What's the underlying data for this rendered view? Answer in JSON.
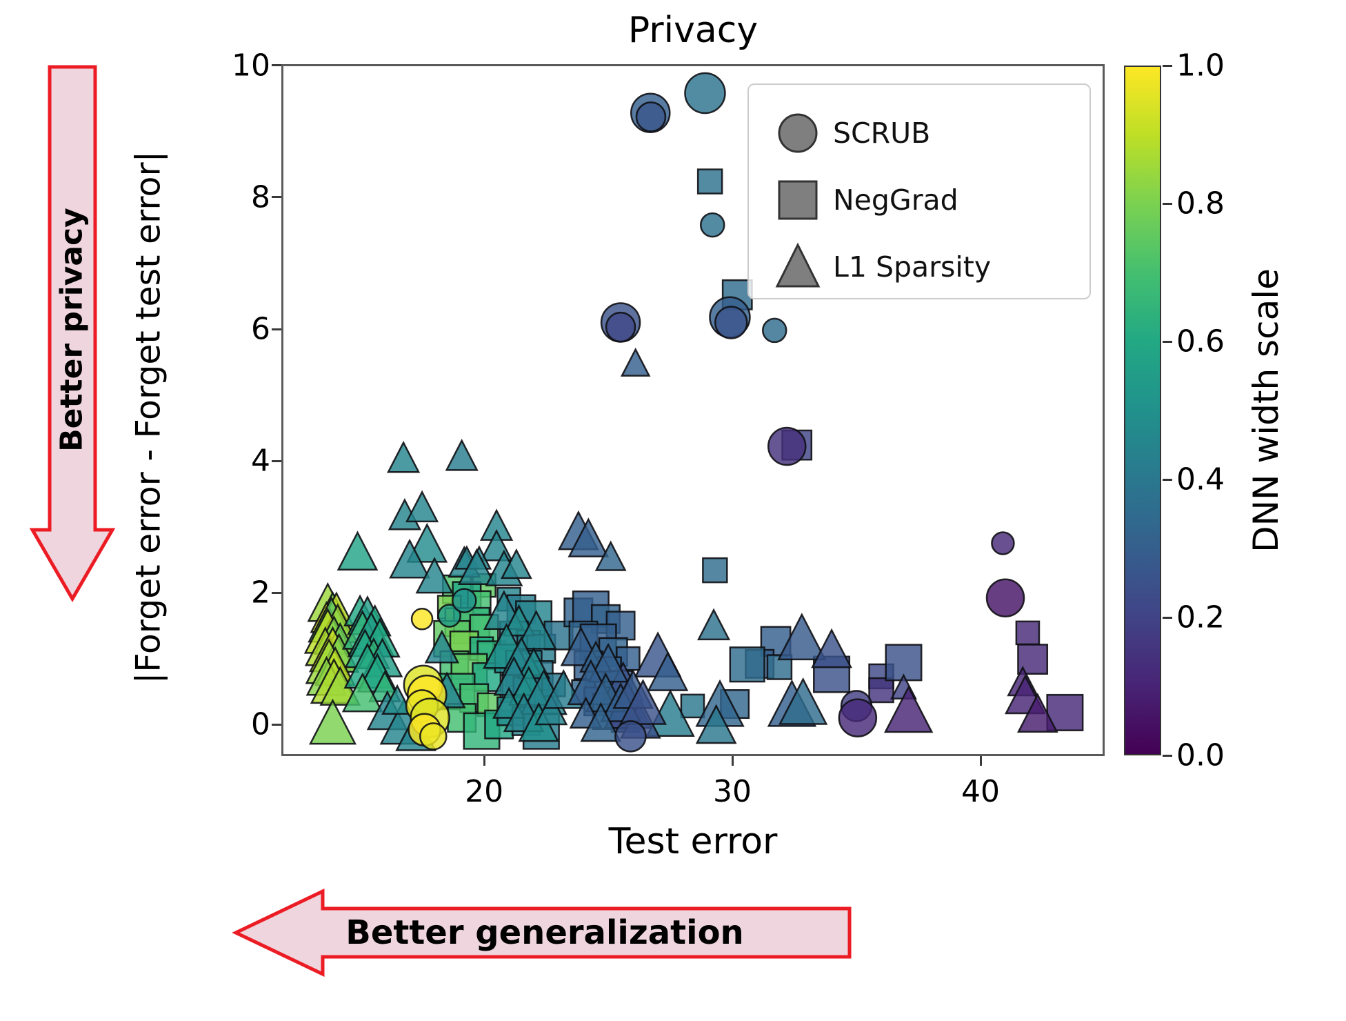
{
  "title": "Privacy",
  "axes": {
    "xlabel": "Test error",
    "ylabel": "|Forget error - Forget test error|",
    "x_ticks": [
      20,
      30,
      40
    ],
    "y_ticks": [
      0,
      2,
      4,
      6,
      8,
      10
    ],
    "xlim": [
      11.83,
      45.0
    ],
    "ylim": [
      -0.48,
      10.02
    ]
  },
  "legend": {
    "items": [
      {
        "marker": "circle",
        "label": "SCRUB"
      },
      {
        "marker": "square",
        "label": "NegGrad"
      },
      {
        "marker": "triangle",
        "label": "L1 Sparsity"
      }
    ],
    "swatch_color": "#7f7f7f",
    "swatch_edge": "#333333"
  },
  "colorbar": {
    "label": "DNN width scale",
    "ticks": [
      1.0,
      0.8,
      0.6,
      0.4,
      0.2,
      0.0
    ],
    "cmap": "viridis",
    "range": [
      0.0,
      1.0
    ]
  },
  "annotations": {
    "left_arrow_text": "Better privacy",
    "bottom_arrow_text": "Better generalization",
    "arrow_fill": "#efd5dd",
    "arrow_stroke": "#ec1c24"
  },
  "chart_data": {
    "type": "scatter",
    "title": "Privacy",
    "xlabel": "Test error",
    "ylabel": "|Forget error - Forget test error|",
    "xlim": [
      11.83,
      45.0
    ],
    "ylim": [
      -0.48,
      10.02
    ],
    "grid": false,
    "color_encoding": "DNN width scale (0 to 1, viridis colormap)",
    "point_format": "[x, y, dnn_width_scale, marker_px_size]",
    "series": [
      {
        "name": "NegGrad",
        "marker": "square",
        "points": [
          [
            29.1,
            8.24,
            0.37,
            38
          ],
          [
            30.2,
            6.52,
            0.35,
            46
          ],
          [
            32.6,
            4.24,
            0.2,
            46
          ],
          [
            29.3,
            2.34,
            0.35,
            38
          ],
          [
            31.75,
            1.26,
            0.3,
            46
          ],
          [
            31.1,
            0.92,
            0.3,
            44
          ],
          [
            31.9,
            0.87,
            0.35,
            38
          ],
          [
            34.0,
            0.76,
            0.25,
            56
          ],
          [
            36.0,
            0.73,
            0.22,
            38
          ],
          [
            36.0,
            0.52,
            0.15,
            38
          ],
          [
            36.9,
            0.94,
            0.25,
            56
          ],
          [
            30.6,
            0.91,
            0.35,
            54
          ],
          [
            28.4,
            0.28,
            0.4,
            36
          ],
          [
            30.1,
            0.31,
            0.33,
            44
          ],
          [
            41.9,
            1.39,
            0.12,
            36
          ],
          [
            42.1,
            0.99,
            0.12,
            46
          ],
          [
            43.4,
            0.18,
            0.12,
            56
          ],
          [
            20.0,
            2.11,
            0.75,
            36
          ],
          [
            18.9,
            2.05,
            0.72,
            44
          ],
          [
            19.3,
            1.95,
            0.6,
            44
          ],
          [
            19.8,
            1.85,
            0.7,
            36
          ],
          [
            18.6,
            1.78,
            0.8,
            36
          ],
          [
            19.0,
            1.55,
            0.85,
            44
          ],
          [
            19.5,
            1.5,
            0.65,
            56
          ],
          [
            20.0,
            1.45,
            0.7,
            44
          ],
          [
            18.7,
            1.3,
            0.75,
            56
          ],
          [
            19.2,
            1.2,
            0.8,
            44
          ],
          [
            19.9,
            1.15,
            0.6,
            36
          ],
          [
            20.3,
            1.05,
            0.65,
            44
          ],
          [
            18.8,
            0.9,
            0.7,
            44
          ],
          [
            19.4,
            0.8,
            0.75,
            56
          ],
          [
            20.1,
            0.72,
            0.6,
            44
          ],
          [
            18.9,
            0.5,
            0.65,
            56
          ],
          [
            19.6,
            0.4,
            0.7,
            44
          ],
          [
            20.2,
            0.3,
            0.75,
            36
          ],
          [
            19.1,
            0.1,
            0.7,
            44
          ],
          [
            19.9,
            -0.1,
            0.65,
            56
          ],
          [
            20.6,
            0.0,
            0.6,
            44
          ],
          [
            21.0,
            1.9,
            0.45,
            36
          ],
          [
            21.5,
            1.75,
            0.42,
            44
          ],
          [
            22.0,
            1.6,
            0.45,
            56
          ],
          [
            21.2,
            1.35,
            0.4,
            44
          ],
          [
            21.8,
            1.25,
            0.45,
            36
          ],
          [
            22.3,
            1.15,
            0.42,
            44
          ],
          [
            21.0,
            1.0,
            0.48,
            44
          ],
          [
            21.6,
            0.85,
            0.45,
            56
          ],
          [
            22.2,
            0.75,
            0.4,
            44
          ],
          [
            21.3,
            0.55,
            0.45,
            44
          ],
          [
            21.9,
            0.45,
            0.42,
            56
          ],
          [
            22.5,
            0.35,
            0.45,
            36
          ],
          [
            21.1,
            0.2,
            0.48,
            44
          ],
          [
            21.7,
            0.05,
            0.45,
            44
          ],
          [
            22.3,
            -0.1,
            0.42,
            56
          ],
          [
            22.8,
            0.6,
            0.4,
            36
          ],
          [
            23.0,
            1.35,
            0.38,
            44
          ],
          [
            23.8,
            1.7,
            0.32,
            44
          ],
          [
            24.3,
            1.75,
            0.3,
            56
          ],
          [
            24.9,
            1.6,
            0.32,
            44
          ],
          [
            25.5,
            1.5,
            0.3,
            44
          ],
          [
            24.0,
            1.35,
            0.33,
            44
          ],
          [
            24.6,
            1.25,
            0.3,
            56
          ],
          [
            25.2,
            1.1,
            0.32,
            44
          ],
          [
            25.8,
            1.0,
            0.3,
            36
          ],
          [
            24.2,
            0.9,
            0.3,
            44
          ],
          [
            24.8,
            0.75,
            0.32,
            56
          ],
          [
            25.4,
            0.6,
            0.3,
            44
          ],
          [
            24.0,
            0.5,
            0.33,
            36
          ],
          [
            24.6,
            0.35,
            0.3,
            44
          ],
          [
            25.1,
            0.2,
            0.32,
            56
          ],
          [
            25.7,
            0.1,
            0.3,
            44
          ]
        ]
      },
      {
        "name": "L1 Sparsity",
        "marker": "triangle",
        "points": [
          [
            26.1,
            5.47,
            0.3,
            34
          ],
          [
            32.8,
            1.29,
            0.28,
            58
          ],
          [
            34.0,
            1.12,
            0.25,
            48
          ],
          [
            32.4,
            0.28,
            0.3,
            58
          ],
          [
            32.85,
            0.31,
            0.35,
            58
          ],
          [
            36.9,
            0.55,
            0.2,
            30
          ],
          [
            37.1,
            0.19,
            0.1,
            58
          ],
          [
            41.7,
            0.63,
            0.1,
            36
          ],
          [
            41.8,
            0.42,
            0.1,
            48
          ],
          [
            42.3,
            0.14,
            0.08,
            48
          ],
          [
            29.25,
            1.49,
            0.37,
            38
          ],
          [
            27.0,
            1.02,
            0.27,
            56
          ],
          [
            27.4,
            0.77,
            0.3,
            48
          ],
          [
            27.5,
            0.13,
            0.42,
            58
          ],
          [
            29.5,
            0.28,
            0.33,
            58
          ],
          [
            29.35,
            -0.03,
            0.4,
            48
          ],
          [
            25.6,
            0.62,
            0.25,
            48
          ],
          [
            25.8,
            0.25,
            0.22,
            58
          ],
          [
            26.3,
            0.05,
            0.25,
            48
          ],
          [
            23.8,
            2.91,
            0.3,
            48
          ],
          [
            24.2,
            2.8,
            0.3,
            48
          ],
          [
            25.1,
            2.53,
            0.33,
            36
          ],
          [
            16.75,
            4.03,
            0.45,
            38
          ],
          [
            19.1,
            4.06,
            0.42,
            38
          ],
          [
            16.8,
            3.16,
            0.45,
            38
          ],
          [
            17.5,
            3.28,
            0.45,
            38
          ],
          [
            14.9,
            2.6,
            0.58,
            48
          ],
          [
            17.7,
            2.72,
            0.48,
            48
          ],
          [
            17.0,
            2.48,
            0.45,
            48
          ],
          [
            18.0,
            2.23,
            0.45,
            44
          ],
          [
            19.2,
            2.44,
            0.45,
            38
          ],
          [
            20.5,
            3.0,
            0.45,
            38
          ],
          [
            20.5,
            2.69,
            0.45,
            38
          ],
          [
            19.3,
            2.51,
            0.45,
            28
          ],
          [
            19.8,
            2.51,
            0.45,
            28
          ],
          [
            19.7,
            2.36,
            0.45,
            44
          ],
          [
            20.8,
            2.34,
            0.45,
            44
          ],
          [
            21.3,
            2.41,
            0.45,
            36
          ],
          [
            13.7,
            1.82,
            0.85,
            48
          ],
          [
            13.9,
            1.75,
            0.8,
            38
          ],
          [
            14.05,
            1.68,
            0.9,
            48
          ],
          [
            13.65,
            1.6,
            0.95,
            38
          ],
          [
            13.85,
            1.55,
            0.75,
            56
          ],
          [
            14.1,
            1.5,
            0.85,
            48
          ],
          [
            13.7,
            1.38,
            0.9,
            56
          ],
          [
            13.95,
            1.32,
            0.8,
            48
          ],
          [
            14.2,
            1.28,
            0.78,
            38
          ],
          [
            13.6,
            1.15,
            0.88,
            48
          ],
          [
            13.9,
            1.1,
            0.92,
            56
          ],
          [
            14.15,
            1.05,
            0.8,
            48
          ],
          [
            13.75,
            0.92,
            0.85,
            56
          ],
          [
            14.0,
            0.85,
            0.9,
            48
          ],
          [
            13.65,
            0.7,
            0.82,
            48
          ],
          [
            13.95,
            0.62,
            0.88,
            56
          ],
          [
            14.2,
            0.55,
            0.85,
            48
          ],
          [
            13.9,
            0.0,
            0.8,
            56
          ],
          [
            15.0,
            1.7,
            0.6,
            38
          ],
          [
            15.3,
            1.62,
            0.55,
            48
          ],
          [
            15.6,
            1.55,
            0.6,
            38
          ],
          [
            15.1,
            1.4,
            0.65,
            48
          ],
          [
            15.45,
            1.33,
            0.55,
            56
          ],
          [
            15.8,
            1.28,
            0.6,
            48
          ],
          [
            15.2,
            1.12,
            0.6,
            48
          ],
          [
            15.55,
            1.05,
            0.65,
            38
          ],
          [
            15.9,
            0.98,
            0.55,
            48
          ],
          [
            15.3,
            0.85,
            0.6,
            56
          ],
          [
            15.7,
            0.75,
            0.6,
            48
          ],
          [
            16.0,
            0.55,
            0.65,
            38
          ],
          [
            15.1,
            0.45,
            0.7,
            48
          ],
          [
            16.1,
            0.18,
            0.45,
            48
          ],
          [
            16.75,
            0.0,
            0.45,
            56
          ],
          [
            17.25,
            -0.14,
            0.45,
            48
          ],
          [
            16.5,
            0.35,
            0.48,
            36
          ],
          [
            18.3,
            1.15,
            0.45,
            40
          ],
          [
            18.5,
            0.49,
            0.45,
            44
          ],
          [
            20.8,
            1.7,
            0.45,
            48
          ],
          [
            21.4,
            1.55,
            0.48,
            38
          ],
          [
            22.1,
            1.4,
            0.45,
            48
          ],
          [
            20.9,
            1.15,
            0.5,
            56
          ],
          [
            21.5,
            1.0,
            0.45,
            48
          ],
          [
            22.0,
            0.9,
            0.48,
            38
          ],
          [
            21.2,
            0.7,
            0.45,
            48
          ],
          [
            21.8,
            0.55,
            0.5,
            48
          ],
          [
            22.4,
            0.45,
            0.45,
            56
          ],
          [
            21.0,
            0.3,
            0.48,
            38
          ],
          [
            21.6,
            0.15,
            0.45,
            48
          ],
          [
            22.2,
            0.0,
            0.5,
            48
          ],
          [
            22.7,
            0.2,
            0.45,
            38
          ],
          [
            23.2,
            0.5,
            0.42,
            48
          ],
          [
            23.9,
            1.15,
            0.3,
            48
          ],
          [
            24.5,
            1.0,
            0.32,
            38
          ],
          [
            25.0,
            0.9,
            0.3,
            48
          ],
          [
            24.3,
            0.6,
            0.3,
            56
          ],
          [
            24.9,
            0.45,
            0.32,
            48
          ],
          [
            25.5,
            0.3,
            0.3,
            48
          ],
          [
            24.1,
            0.15,
            0.3,
            38
          ],
          [
            24.7,
            0.0,
            0.32,
            48
          ],
          [
            26.0,
            0.5,
            0.28,
            48
          ],
          [
            26.4,
            0.3,
            0.25,
            56
          ]
        ]
      },
      {
        "name": "SCRUB",
        "marker": "circle",
        "points": [
          [
            26.7,
            9.28,
            0.3,
            56
          ],
          [
            26.72,
            9.22,
            0.27,
            42
          ],
          [
            28.9,
            9.58,
            0.38,
            58
          ],
          [
            29.2,
            7.58,
            0.37,
            34
          ],
          [
            29.9,
            6.18,
            0.3,
            58
          ],
          [
            29.95,
            6.1,
            0.26,
            46
          ],
          [
            31.7,
            5.98,
            0.35,
            34
          ],
          [
            25.5,
            6.1,
            0.25,
            56
          ],
          [
            25.5,
            6.03,
            0.22,
            42
          ],
          [
            32.2,
            4.22,
            0.14,
            54
          ],
          [
            40.9,
            2.75,
            0.12,
            32
          ],
          [
            41.0,
            1.92,
            0.05,
            54
          ],
          [
            35.0,
            0.28,
            0.18,
            44
          ],
          [
            35.05,
            0.1,
            0.12,
            54
          ],
          [
            25.9,
            -0.18,
            0.25,
            44
          ],
          [
            17.5,
            1.6,
            1.0,
            30
          ],
          [
            18.6,
            1.65,
            0.55,
            32
          ],
          [
            19.2,
            1.88,
            0.5,
            34
          ],
          [
            17.55,
            0.6,
            0.95,
            56
          ],
          [
            17.7,
            0.45,
            1.0,
            56
          ],
          [
            17.5,
            0.28,
            0.97,
            46
          ],
          [
            17.82,
            0.1,
            0.95,
            56
          ],
          [
            17.6,
            -0.08,
            1.0,
            46
          ],
          [
            17.95,
            -0.18,
            0.97,
            38
          ]
        ]
      }
    ]
  }
}
